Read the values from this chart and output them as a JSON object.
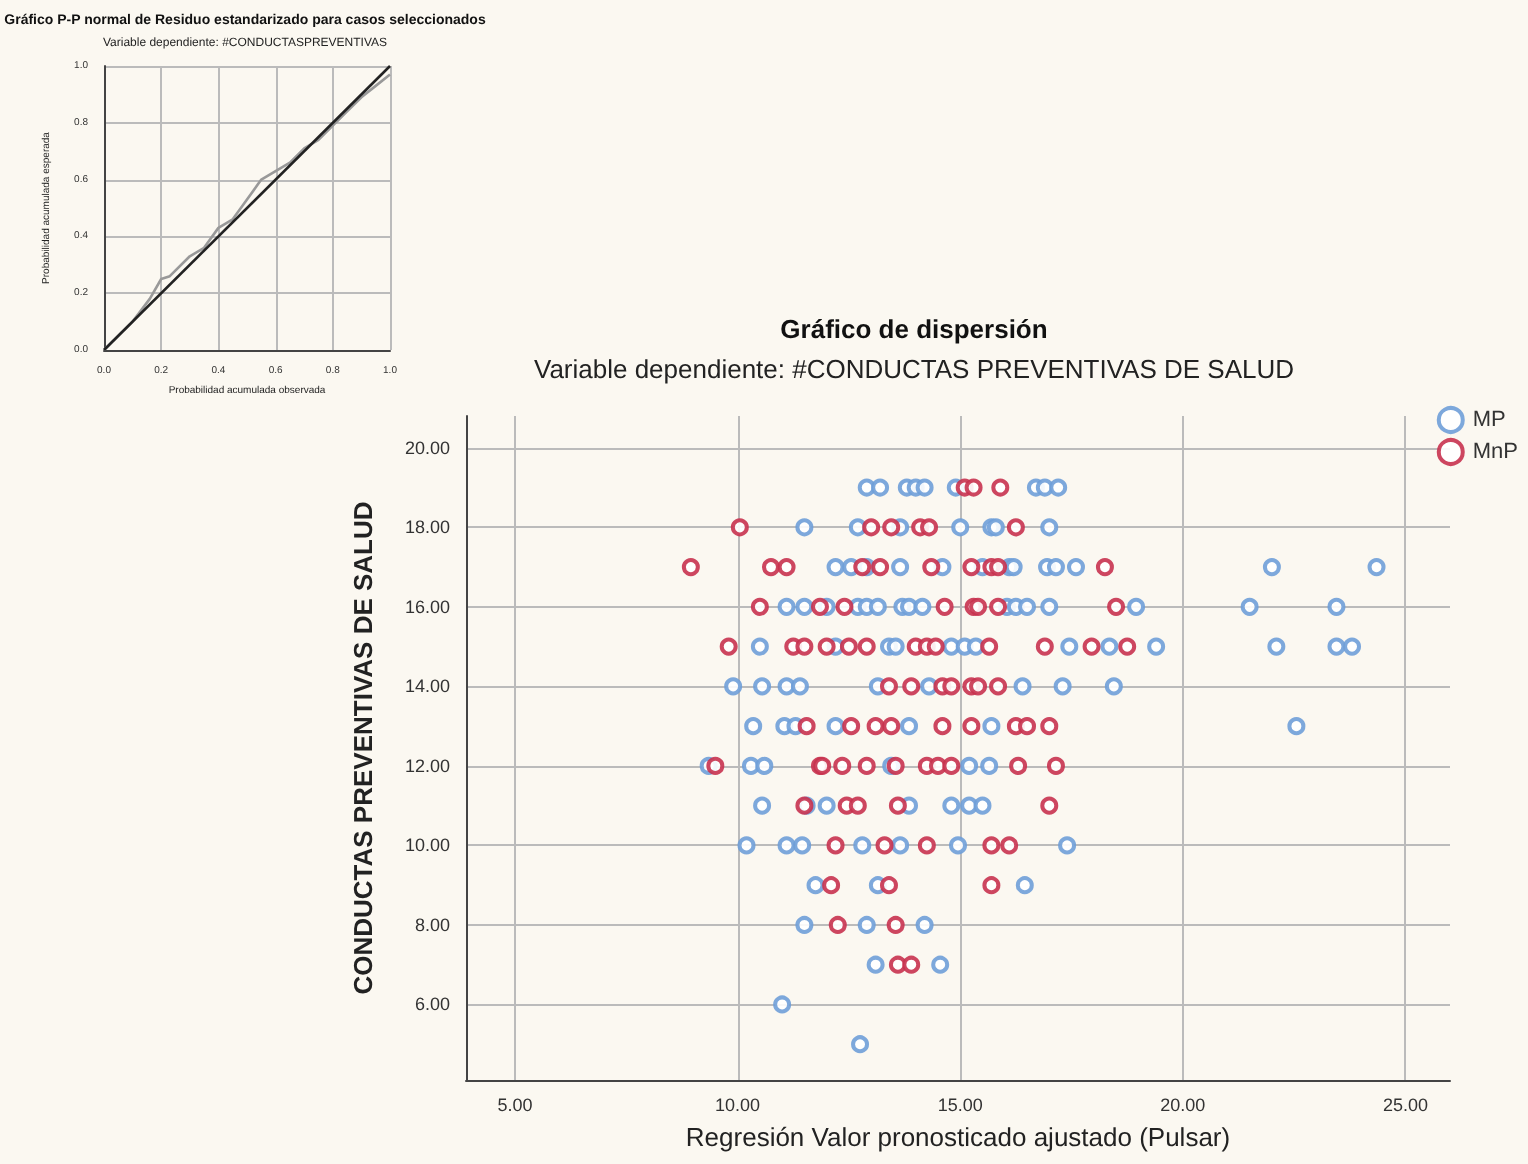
{
  "chart_data": [
    {
      "type": "line",
      "title": "Gráfico P-P normal de Residuo estandarizado para casos seleccionados",
      "subtitle": "Variable dependiente: #CONDUCTASPREVENTIVAS",
      "xlabel": "Probabilidad acumulada observada",
      "ylabel": "Probabilidad acumulada esperada",
      "xlim": [
        0,
        1
      ],
      "ylim": [
        0,
        1
      ],
      "xticks": [
        {
          "value": 0,
          "label": "0.0"
        },
        {
          "value": 0.2,
          "label": "0.2"
        },
        {
          "value": 0.4,
          "label": "0.4"
        },
        {
          "value": 0.6,
          "label": "0.6"
        },
        {
          "value": 0.8,
          "label": "0.8"
        },
        {
          "value": 1,
          "label": "1.0"
        }
      ],
      "yticks": [
        {
          "value": 0,
          "label": "0.0"
        },
        {
          "value": 0.2,
          "label": "0.2"
        },
        {
          "value": 0.4,
          "label": "0.4"
        },
        {
          "value": 0.6,
          "label": "0.6"
        },
        {
          "value": 0.8,
          "label": "0.8"
        },
        {
          "value": 1,
          "label": "1.0"
        }
      ],
      "grid": true,
      "legend": false,
      "marker": "none",
      "series": [
        {
          "color": "#999999",
          "x": [
            0,
            0.1,
            0.16,
            0.2,
            0.23,
            0.3,
            0.35,
            0.4,
            0.45,
            0.5,
            0.55,
            0.6,
            0.65,
            0.7,
            0.75,
            0.8,
            0.85,
            0.9,
            0.95,
            1
          ],
          "values": [
            0,
            0.1,
            0.18,
            0.25,
            0.26,
            0.33,
            0.36,
            0.43,
            0.46,
            0.53,
            0.6,
            0.63,
            0.66,
            0.71,
            0.74,
            0.79,
            0.84,
            0.89,
            0.93,
            0.97
          ]
        },
        {
          "color": "#222222",
          "x": [
            0,
            1
          ],
          "values": [
            0,
            1
          ]
        }
      ]
    },
    {
      "type": "scatter",
      "title": "Gráfico de dispersión",
      "subtitle": "Variable dependiente: #CONDUCTAS PREVENTIVAS DE SALUD",
      "xlabel": "Regresión Valor pronosticado ajustado (Pulsar)",
      "ylabel": "CONDUCTAS PREVENTIVAS DE SALUD",
      "xlim": [
        3.9,
        26
      ],
      "ylim": [
        4.1,
        20.8
      ],
      "xticks": [
        {
          "value": 5,
          "label": "5.00"
        },
        {
          "value": 10,
          "label": "10.00"
        },
        {
          "value": 15,
          "label": "15.00"
        },
        {
          "value": 20,
          "label": "20.00"
        },
        {
          "value": 25,
          "label": "25.00"
        }
      ],
      "yticks": [
        {
          "value": 6,
          "label": "6.00"
        },
        {
          "value": 8,
          "label": "8.00"
        },
        {
          "value": 10,
          "label": "10.00"
        },
        {
          "value": 12,
          "label": "12.00"
        },
        {
          "value": 14,
          "label": "14.00"
        },
        {
          "value": 16,
          "label": "16.00"
        },
        {
          "value": 18,
          "label": "18.00"
        },
        {
          "value": 20,
          "label": "20.00"
        }
      ],
      "grid": true,
      "legend": "top right",
      "marker": "circle",
      "series": [
        {
          "name": "MP",
          "color": "#6f9fd8",
          "x": [
            12.9,
            13.2,
            13.8,
            14.0,
            14.2,
            14.9,
            16.7,
            16.9,
            17.2,
            11.5,
            12.7,
            13.65,
            15.0,
            15.7,
            15.8,
            17.0,
            12.2,
            12.55,
            12.9,
            13.65,
            14.6,
            15.5,
            16.1,
            16.2,
            16.95,
            17.15,
            17.6,
            22.0,
            24.35,
            11.1,
            11.5,
            12.0,
            12.7,
            12.9,
            13.15,
            13.7,
            13.85,
            14.15,
            16.05,
            16.25,
            16.5,
            17.0,
            18.95,
            21.5,
            23.45,
            10.5,
            12.2,
            13.4,
            13.55,
            14.8,
            15.1,
            15.35,
            17.45,
            18.35,
            19.4,
            22.1,
            23.45,
            23.8,
            9.9,
            10.55,
            11.1,
            11.4,
            13.15,
            14.3,
            16.4,
            17.3,
            18.45,
            10.35,
            11.05,
            11.3,
            12.2,
            13.85,
            15.7,
            22.55,
            9.35,
            10.3,
            10.6,
            13.45,
            15.2,
            15.65,
            10.55,
            11.55,
            12.0,
            13.85,
            14.8,
            15.2,
            15.5,
            10.2,
            11.1,
            11.45,
            12.8,
            13.65,
            14.95,
            17.4,
            11.75,
            13.15,
            16.45,
            11.5,
            12.9,
            14.2,
            13.1,
            14.55,
            11.0,
            12.75
          ],
          "values": [
            19,
            19,
            19,
            19,
            19,
            19,
            19,
            19,
            19,
            18,
            18,
            18,
            18,
            18,
            18,
            18,
            17,
            17,
            17,
            17,
            17,
            17,
            17,
            17,
            17,
            17,
            17,
            17,
            17,
            16,
            16,
            16,
            16,
            16,
            16,
            16,
            16,
            16,
            16,
            16,
            16,
            16,
            16,
            16,
            16,
            15,
            15,
            15,
            15,
            15,
            15,
            15,
            15,
            15,
            15,
            15,
            15,
            15,
            14,
            14,
            14,
            14,
            14,
            14,
            14,
            14,
            14,
            13,
            13,
            13,
            13,
            13,
            13,
            13,
            12,
            12,
            12,
            12,
            12,
            12,
            11,
            11,
            11,
            11,
            11,
            11,
            11,
            10,
            10,
            10,
            10,
            10,
            10,
            10,
            9,
            9,
            9,
            8,
            8,
            8,
            7,
            7,
            6,
            5
          ]
        },
        {
          "name": "MnP",
          "color": "#c8324f",
          "x": [
            15.1,
            15.3,
            15.9,
            10.05,
            13.0,
            13.45,
            14.1,
            14.3,
            16.25,
            8.95,
            10.75,
            11.1,
            12.8,
            13.2,
            14.35,
            15.25,
            15.7,
            15.85,
            18.25,
            10.5,
            11.85,
            12.4,
            14.65,
            15.3,
            15.4,
            15.85,
            18.5,
            9.8,
            11.25,
            11.5,
            12.0,
            12.5,
            12.9,
            14.0,
            14.25,
            14.45,
            15.65,
            16.9,
            17.95,
            18.75,
            13.4,
            13.9,
            14.6,
            14.8,
            15.25,
            15.4,
            15.85,
            11.55,
            12.55,
            13.1,
            13.45,
            14.6,
            15.25,
            16.25,
            16.5,
            17.0,
            9.5,
            11.85,
            11.9,
            12.35,
            12.9,
            13.55,
            14.25,
            14.5,
            14.8,
            16.3,
            17.15,
            11.5,
            12.45,
            12.7,
            13.6,
            17.0,
            12.2,
            13.3,
            14.25,
            15.7,
            16.1,
            12.1,
            13.4,
            15.7,
            12.25,
            13.55,
            13.6,
            13.9
          ],
          "values": [
            19,
            19,
            19,
            18,
            18,
            18,
            18,
            18,
            18,
            17,
            17,
            17,
            17,
            17,
            17,
            17,
            17,
            17,
            17,
            16,
            16,
            16,
            16,
            16,
            16,
            16,
            16,
            15,
            15,
            15,
            15,
            15,
            15,
            15,
            15,
            15,
            15,
            15,
            15,
            15,
            14,
            14,
            14,
            14,
            14,
            14,
            14,
            13,
            13,
            13,
            13,
            13,
            13,
            13,
            13,
            13,
            12,
            12,
            12,
            12,
            12,
            12,
            12,
            12,
            12,
            12,
            12,
            11,
            11,
            11,
            11,
            11,
            10,
            10,
            10,
            10,
            10,
            9,
            9,
            9,
            8,
            8,
            7,
            7
          ]
        }
      ]
    }
  ]
}
